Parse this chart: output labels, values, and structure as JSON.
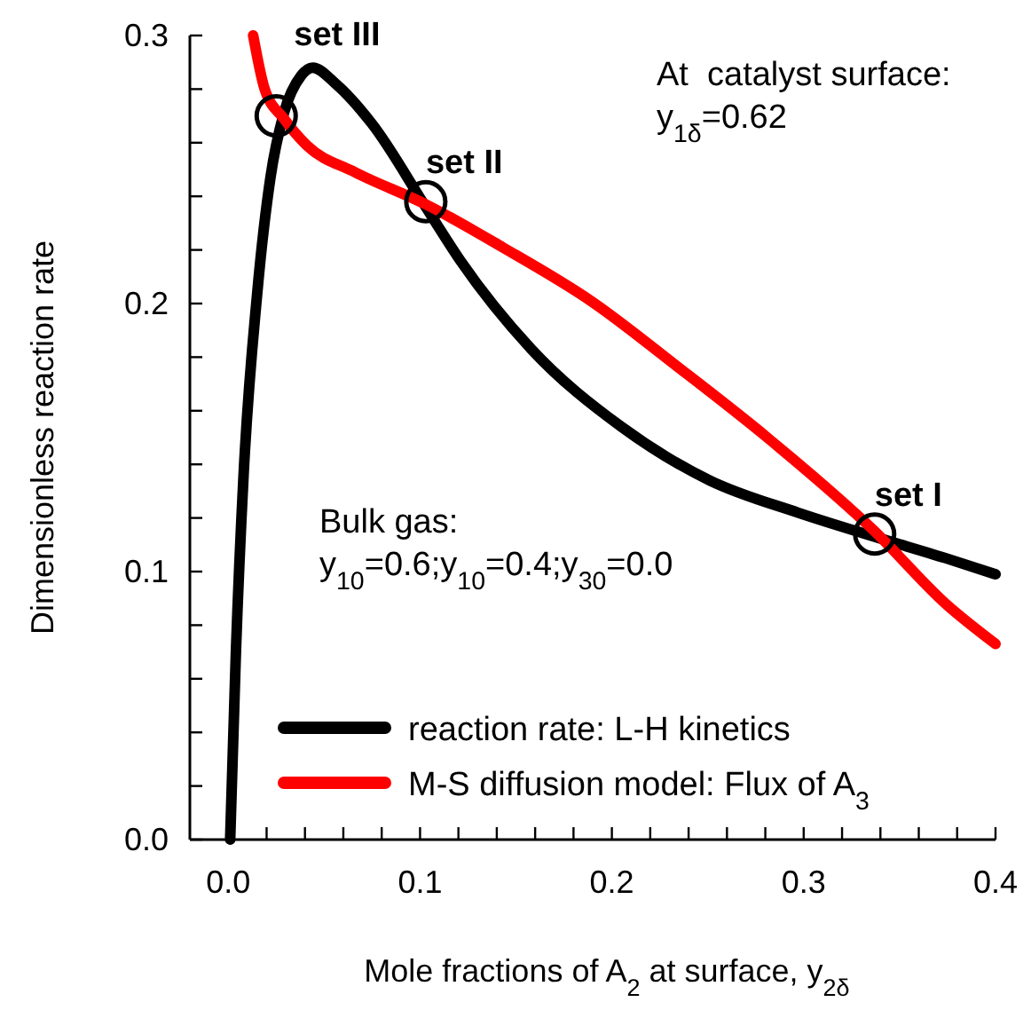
{
  "chart_data": {
    "type": "line",
    "xlabel": "Mole fractions of A$_{2}$ at surface, y$_{2δ}$",
    "ylabel": "Dimensionless reaction rate",
    "xlim": [
      -0.02,
      0.4
    ],
    "ylim": [
      0,
      0.3
    ],
    "xticks": [
      {
        "value": 0,
        "label": "0.0"
      },
      {
        "value": 0.02,
        "label": null
      },
      {
        "value": 0.04,
        "label": null
      },
      {
        "value": 0.06,
        "label": null
      },
      {
        "value": 0.08,
        "label": null
      },
      {
        "value": 0.1,
        "label": "0.1"
      },
      {
        "value": 0.12,
        "label": null
      },
      {
        "value": 0.14,
        "label": null
      },
      {
        "value": 0.16,
        "label": null
      },
      {
        "value": 0.18,
        "label": null
      },
      {
        "value": 0.2,
        "label": "0.2"
      },
      {
        "value": 0.22,
        "label": null
      },
      {
        "value": 0.24,
        "label": null
      },
      {
        "value": 0.26,
        "label": null
      },
      {
        "value": 0.28,
        "label": null
      },
      {
        "value": 0.3,
        "label": "0.3"
      },
      {
        "value": 0.32,
        "label": null
      },
      {
        "value": 0.34,
        "label": null
      },
      {
        "value": 0.36,
        "label": null
      },
      {
        "value": 0.38,
        "label": null
      },
      {
        "value": 0.4,
        "label": "0.4"
      }
    ],
    "yticks": [
      {
        "value": 0,
        "label": "0.0"
      },
      {
        "value": 0.02,
        "label": null
      },
      {
        "value": 0.04,
        "label": null
      },
      {
        "value": 0.06,
        "label": null
      },
      {
        "value": 0.08,
        "label": null
      },
      {
        "value": 0.1,
        "label": "0.1"
      },
      {
        "value": 0.12,
        "label": null
      },
      {
        "value": 0.14,
        "label": null
      },
      {
        "value": 0.16,
        "label": null
      },
      {
        "value": 0.18,
        "label": null
      },
      {
        "value": 0.2,
        "label": "0.2"
      },
      {
        "value": 0.22,
        "label": null
      },
      {
        "value": 0.24,
        "label": null
      },
      {
        "value": 0.26,
        "label": null
      },
      {
        "value": 0.28,
        "label": null
      },
      {
        "value": 0.3,
        "label": "0.3"
      }
    ],
    "grid": false,
    "legend": "bottom right",
    "line_style": "solid",
    "marker": "none",
    "series": [
      {
        "name": "reaction rate: L-H kinetics",
        "color": "#000000",
        "x": [
          0.001,
          0.004,
          0.008,
          0.015,
          0.022,
          0.029,
          0.038,
          0.044,
          0.056,
          0.075,
          0.103,
          0.121,
          0.158,
          0.205,
          0.251,
          0.297,
          0.337,
          0.374,
          0.4
        ],
        "values": [
          0,
          0.07,
          0.136,
          0.203,
          0.247,
          0.271,
          0.285,
          0.288,
          0.282,
          0.267,
          0.236,
          0.216,
          0.183,
          0.154,
          0.134,
          0.122,
          0.113,
          0.105,
          0.099
        ]
      },
      {
        "name": "M-S diffusion model: Flux of A$_{3}$",
        "color": "#ff0000",
        "x": [
          0.013,
          0.019,
          0.029,
          0.041,
          0.066,
          0.103,
          0.143,
          0.189,
          0.235,
          0.281,
          0.337,
          0.374,
          0.4
        ],
        "values": [
          0.3,
          0.28,
          0.269,
          0.259,
          0.249,
          0.237,
          0.221,
          0.201,
          0.176,
          0.15,
          0.115,
          0.088,
          0.073
        ]
      },
      {
        "type": "scatter",
        "marker": "circle",
        "color": "#000000",
        "x": [
          0.025,
          0.103,
          0.337
        ],
        "values": [
          0.27,
          0.238,
          0.114
        ]
      }
    ],
    "annotations": [
      {
        "text": "set III",
        "x": 0.025,
        "y": 0.27
      },
      {
        "text": "set II",
        "x": 0.103,
        "y": 0.238
      },
      {
        "text": "set I",
        "x": 0.337,
        "y": 0.114
      },
      "At  catalyst surface:\ny$_{1δ}$=0.62",
      "Bulk gas:\ny$_{10}$=0.6;y$_{10}$=0.4;y$_{30}$=0.0"
    ]
  }
}
